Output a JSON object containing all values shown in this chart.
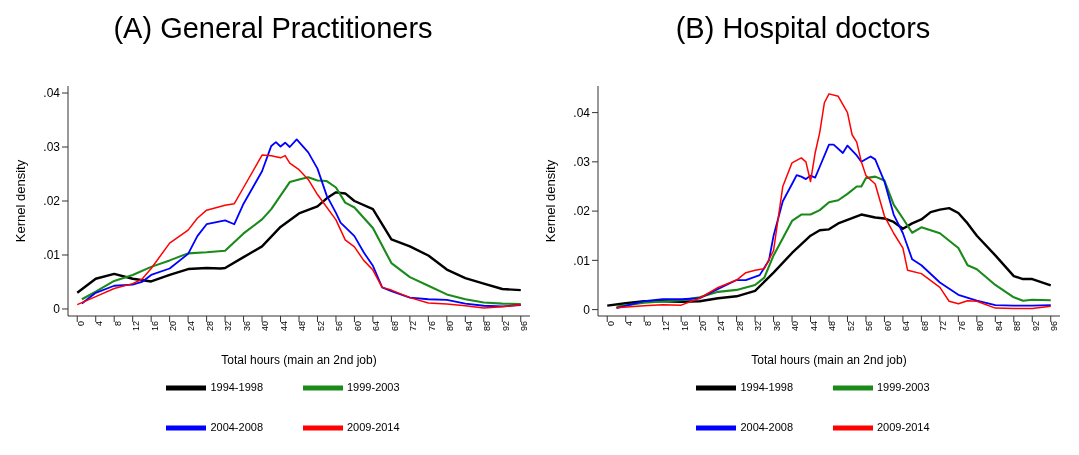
{
  "chart_data": [
    {
      "type": "line",
      "title": "(A) General Practitioners",
      "xlabel": "Total hours (main an 2nd job)",
      "ylabel": "Kernel density",
      "xlim": [
        -2,
        98
      ],
      "xticks": [
        0,
        4,
        8,
        12,
        16,
        20,
        24,
        28,
        32,
        36,
        40,
        44,
        48,
        52,
        56,
        60,
        64,
        68,
        72,
        76,
        80,
        84,
        88,
        92,
        96
      ],
      "ylim": [
        -0.0013,
        0.0413
      ],
      "yticks": [
        0,
        {
          "value": 0.01,
          "label": ".01"
        },
        {
          "value": 0.02,
          "label": ".02"
        },
        {
          "value": 0.03,
          "label": ".03"
        },
        {
          "value": 0.04,
          "label": ".04"
        }
      ],
      "grid": false,
      "legend": "bottom",
      "marker": "none",
      "line_style": "solid",
      "series": [
        {
          "name": "1994-1998",
          "color": "#000000",
          "x": [
            0,
            4,
            8,
            12,
            16,
            20,
            24,
            28,
            31,
            32,
            36,
            40,
            44,
            48,
            52,
            54,
            56,
            58,
            60,
            64,
            68,
            72,
            76,
            80,
            84,
            88,
            92,
            96
          ],
          "values": [
            0.003,
            0.0056,
            0.0065,
            0.0056,
            0.0051,
            0.0063,
            0.0074,
            0.0076,
            0.0075,
            0.0076,
            0.0096,
            0.0116,
            0.0152,
            0.0177,
            0.019,
            0.0205,
            0.0216,
            0.0214,
            0.02,
            0.0185,
            0.0129,
            0.0116,
            0.0099,
            0.0073,
            0.0057,
            0.0047,
            0.0037,
            0.0035
          ]
        },
        {
          "name": "1999-2003",
          "color": "#1a8a1a",
          "x": [
            1,
            4,
            8,
            12,
            16,
            20,
            24,
            28,
            32,
            36,
            40,
            42,
            44,
            46,
            48,
            50,
            52,
            54,
            56,
            58,
            60,
            64,
            68,
            72,
            76,
            80,
            84,
            88,
            92,
            96
          ],
          "values": [
            0.0018,
            0.0032,
            0.0052,
            0.0063,
            0.0078,
            0.009,
            0.0103,
            0.0105,
            0.0108,
            0.014,
            0.0166,
            0.0185,
            0.021,
            0.0235,
            0.024,
            0.0244,
            0.0238,
            0.0237,
            0.0225,
            0.0197,
            0.0188,
            0.015,
            0.0085,
            0.0059,
            0.0043,
            0.0027,
            0.0018,
            0.0012,
            0.001,
            0.0009
          ]
        },
        {
          "name": "2004-2008",
          "color": "#0000ff",
          "x": [
            1,
            4,
            8,
            12,
            14,
            16,
            20,
            24,
            26,
            28,
            32,
            34,
            36,
            40,
            42,
            43,
            44,
            45,
            46,
            47.5,
            50,
            52,
            54,
            56,
            57,
            60,
            62,
            64,
            66,
            68,
            72,
            76,
            80,
            84,
            88,
            92,
            96
          ],
          "values": [
            0.001,
            0.003,
            0.0043,
            0.0045,
            0.005,
            0.0063,
            0.0075,
            0.0102,
            0.0135,
            0.0157,
            0.0164,
            0.0157,
            0.0195,
            0.0255,
            0.0302,
            0.0309,
            0.0301,
            0.0308,
            0.03,
            0.0314,
            0.029,
            0.026,
            0.021,
            0.0178,
            0.016,
            0.0135,
            0.0105,
            0.008,
            0.004,
            0.0033,
            0.0021,
            0.0018,
            0.0017,
            0.001,
            0.0006,
            0.0005,
            0.0007
          ]
        },
        {
          "name": "2009-2014",
          "color": "#ff0000",
          "x": [
            0,
            4,
            8,
            12,
            14,
            16,
            20,
            24,
            26,
            28,
            32,
            34,
            36,
            40,
            42,
            44,
            45,
            46,
            48,
            50,
            52,
            56,
            58,
            60,
            62,
            64,
            66,
            68,
            72,
            76,
            80,
            84,
            88,
            92,
            96
          ],
          "values": [
            0.0008,
            0.0023,
            0.0038,
            0.0047,
            0.0055,
            0.0075,
            0.0122,
            0.0146,
            0.0168,
            0.0183,
            0.0192,
            0.0195,
            0.0225,
            0.0285,
            0.0284,
            0.028,
            0.0284,
            0.027,
            0.0258,
            0.024,
            0.0212,
            0.0165,
            0.0128,
            0.0115,
            0.009,
            0.0072,
            0.004,
            0.0035,
            0.0021,
            0.0011,
            0.0009,
            0.0006,
            0.0002,
            0.0004,
            0.0008
          ]
        }
      ]
    },
    {
      "type": "line",
      "title": "(B) Hospital doctors",
      "xlabel": "Total hours (main an 2nd job)",
      "ylabel": "Kernel density",
      "xlim": [
        -2,
        98
      ],
      "xticks": [
        0,
        4,
        8,
        12,
        16,
        20,
        24,
        28,
        32,
        36,
        40,
        44,
        48,
        52,
        56,
        60,
        64,
        68,
        72,
        76,
        80,
        84,
        88,
        92,
        96
      ],
      "ylim": [
        -0.0013,
        0.0454
      ],
      "yticks": [
        0,
        {
          "value": 0.01,
          "label": ".01"
        },
        {
          "value": 0.02,
          "label": ".02"
        },
        {
          "value": 0.03,
          "label": ".03"
        },
        {
          "value": 0.04,
          "label": ".04"
        }
      ],
      "grid": false,
      "legend": "bottom",
      "marker": "none",
      "line_style": "solid",
      "series": [
        {
          "name": "1994-1998",
          "color": "#000000",
          "x": [
            0,
            4,
            8,
            12,
            16,
            20,
            24,
            28,
            32,
            36,
            40,
            44,
            46,
            48,
            50,
            52,
            55,
            58,
            60,
            62,
            64,
            66,
            68,
            70,
            72,
            74,
            76,
            78,
            80,
            84,
            88,
            90,
            92,
            96
          ],
          "values": [
            0.0008,
            0.0013,
            0.0017,
            0.0017,
            0.0016,
            0.0017,
            0.0023,
            0.0027,
            0.0038,
            0.0075,
            0.0115,
            0.015,
            0.0161,
            0.0163,
            0.0175,
            0.0182,
            0.0193,
            0.0187,
            0.0185,
            0.0178,
            0.0164,
            0.0175,
            0.0183,
            0.0198,
            0.0203,
            0.0206,
            0.0196,
            0.0175,
            0.015,
            0.011,
            0.0068,
            0.0062,
            0.0062,
            0.0049
          ]
        },
        {
          "name": "1999-2003",
          "color": "#1a8a1a",
          "x": [
            2,
            8,
            16,
            20,
            24,
            28,
            32,
            34,
            36,
            38,
            40,
            42,
            44,
            46,
            48,
            50,
            52,
            54,
            55,
            56,
            58,
            60,
            62,
            64,
            66,
            68,
            72,
            76,
            78,
            80,
            84,
            88,
            90,
            92,
            96
          ],
          "values": [
            0.0006,
            0.0014,
            0.0019,
            0.0025,
            0.0036,
            0.004,
            0.005,
            0.0065,
            0.011,
            0.0145,
            0.018,
            0.0193,
            0.0193,
            0.0202,
            0.0218,
            0.0222,
            0.0235,
            0.025,
            0.025,
            0.0267,
            0.027,
            0.0262,
            0.0213,
            0.0185,
            0.0156,
            0.0167,
            0.0155,
            0.0125,
            0.009,
            0.0082,
            0.005,
            0.0025,
            0.0018,
            0.002,
            0.0019
          ]
        },
        {
          "name": "2004-2008",
          "color": "#0000ff",
          "x": [
            2,
            8,
            12,
            16,
            20,
            24,
            28,
            30,
            33,
            35,
            36,
            38,
            40,
            41,
            42,
            43,
            44,
            45,
            46,
            48,
            49,
            51,
            52,
            54,
            55,
            57,
            58,
            60,
            62,
            64,
            66,
            68,
            72,
            76,
            80,
            84,
            88,
            92,
            96
          ],
          "values": [
            0.0003,
            0.0017,
            0.0021,
            0.0021,
            0.0023,
            0.0042,
            0.006,
            0.006,
            0.007,
            0.01,
            0.015,
            0.022,
            0.0255,
            0.0273,
            0.027,
            0.0265,
            0.0272,
            0.0268,
            0.029,
            0.0335,
            0.0335,
            0.0318,
            0.0333,
            0.0313,
            0.03,
            0.0311,
            0.0305,
            0.026,
            0.0193,
            0.0155,
            0.0102,
            0.009,
            0.0055,
            0.003,
            0.0018,
            0.0009,
            0.0008,
            0.0008,
            0.0009
          ]
        },
        {
          "name": "2009-2014",
          "color": "#ff0000",
          "x": [
            2,
            8,
            12,
            16,
            20,
            24,
            28,
            30,
            32,
            34,
            36,
            38,
            40,
            42,
            43,
            44,
            45,
            46,
            47,
            48,
            50,
            52,
            53,
            54,
            55,
            56,
            58,
            60,
            62,
            64,
            65,
            68,
            72,
            74,
            76,
            78,
            80,
            84,
            88,
            92,
            96
          ],
          "values": [
            0.0004,
            0.0008,
            0.001,
            0.0009,
            0.0023,
            0.0045,
            0.006,
            0.0075,
            0.008,
            0.0083,
            0.012,
            0.025,
            0.0298,
            0.0308,
            0.03,
            0.026,
            0.0318,
            0.036,
            0.042,
            0.0438,
            0.0433,
            0.04,
            0.0355,
            0.034,
            0.03,
            0.0272,
            0.0255,
            0.019,
            0.0155,
            0.0125,
            0.008,
            0.0073,
            0.0045,
            0.0017,
            0.0012,
            0.0018,
            0.0017,
            0.0003,
            0.0002,
            0.0002,
            0.0007
          ]
        }
      ]
    }
  ]
}
